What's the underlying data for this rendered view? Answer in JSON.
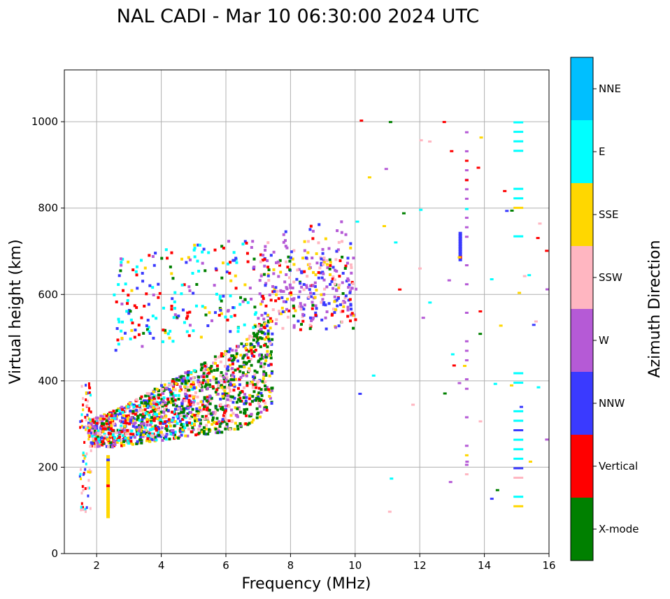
{
  "chart_data": {
    "type": "scatter",
    "title": "NAL CADI - Mar 10 06:30:00 2024 UTC",
    "xlabel": "Frequency (MHz)",
    "ylabel": "Virtual height (km)",
    "xlim": [
      1,
      16
    ],
    "ylim": [
      0,
      1120
    ],
    "xticks": [
      2,
      4,
      6,
      8,
      10,
      12,
      14,
      16
    ],
    "yticks": [
      0,
      200,
      400,
      600,
      800,
      1000
    ],
    "grid": true,
    "colorbar": {
      "label": "Azimuth Direction",
      "categories": [
        {
          "name": "X-mode",
          "color": "#008000"
        },
        {
          "name": "Vertical",
          "color": "#ff0000"
        },
        {
          "name": "NNW",
          "color": "#3a3aff"
        },
        {
          "name": "W",
          "color": "#b55ad6"
        },
        {
          "name": "SSW",
          "color": "#ffb6c1"
        },
        {
          "name": "SSE",
          "color": "#ffd700"
        },
        {
          "name": "E",
          "color": "#00ffff"
        },
        {
          "name": "NNE",
          "color": "#00bfff"
        }
      ]
    },
    "echo_regions": [
      {
        "name": "near-vertical low echoes",
        "f": [
          1.5,
          1.8
        ],
        "h": [
          90,
          400
        ]
      },
      {
        "name": "F-layer main trace",
        "f": [
          1.7,
          7.5
        ],
        "h": [
          240,
          480
        ]
      },
      {
        "name": "oblique upper trace",
        "f": [
          2.5,
          10.0
        ],
        "h": [
          480,
          760
        ]
      },
      {
        "name": "high oblique band",
        "f": [
          7.0,
          10.0
        ],
        "h": [
          520,
          690
        ]
      },
      {
        "name": "sparse far echoes",
        "f": [
          10.0,
          16.0
        ],
        "h": [
          90,
          1020
        ]
      }
    ],
    "vertical_bands": [
      {
        "f": 2.3,
        "h": [
          90,
          230
        ],
        "azimuth": "SSE"
      },
      {
        "f": 13.4,
        "h": [
          120,
          1015
        ],
        "azimuth": "W"
      },
      {
        "f": 14.9,
        "h": [
          90,
          420
        ],
        "azimuth": "E"
      },
      {
        "f": 14.9,
        "h": [
          715,
          1020
        ],
        "azimuth": "E"
      },
      {
        "f": 13.2,
        "h": [
          685,
          745
        ],
        "azimuth": "NNW"
      }
    ]
  }
}
